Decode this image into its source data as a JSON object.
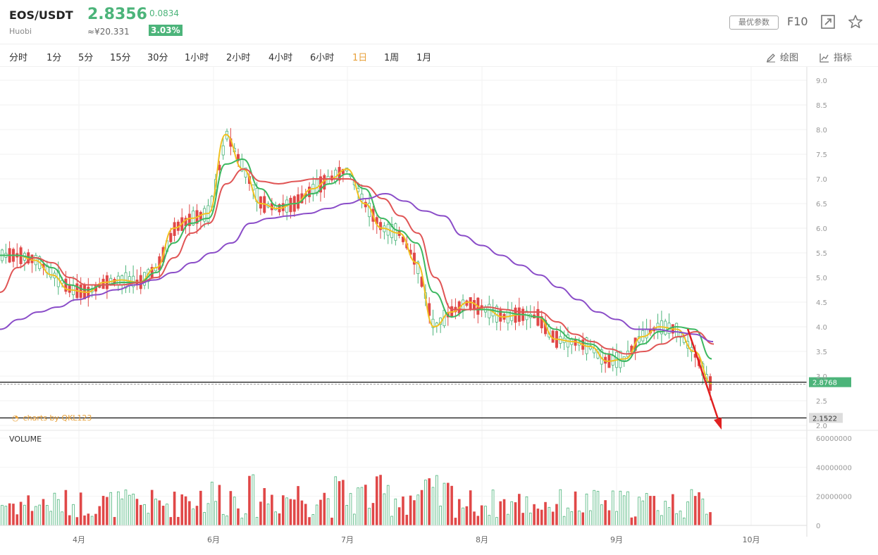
{
  "header": {
    "symbol": "EOS/USDT",
    "exchange": "Huobi",
    "price": "2.8356",
    "cny_price": "≈¥20.331",
    "change": "0.0834",
    "change_pct": "3.03%",
    "params_label": "最优参数",
    "f10_label": "F10",
    "up_color": "#4cb47a",
    "down_color": "#e04848"
  },
  "toolbar": {
    "timeframes": [
      "分时",
      "1分",
      "5分",
      "15分",
      "30分",
      "1小时",
      "2小时",
      "4小时",
      "6小时",
      "1日",
      "1周",
      "1月"
    ],
    "active": "1日",
    "draw_label": "绘图",
    "indicator_label": "指标"
  },
  "watermark": "charts by QKL123",
  "volume_label": "VOLUME",
  "chart_data": [
    {
      "type": "candlestick",
      "x_labels": [
        "4月",
        "6月",
        "7月",
        "8月",
        "9月",
        "10月"
      ],
      "y_ticks": [
        2.0,
        2.5,
        3.0,
        3.5,
        4.0,
        4.5,
        5.0,
        5.5,
        6.0,
        6.5,
        7.0,
        7.5,
        8.0,
        8.5,
        9.0
      ],
      "ylim": [
        2.0,
        9.0
      ],
      "price_markers": [
        {
          "label": "2.8768",
          "value": 2.8768,
          "color": "#4cb47a"
        },
        {
          "label": "2.1522",
          "value": 2.1522,
          "color": "#dddddd"
        }
      ],
      "ma_series": [
        {
          "color": "#f0c020",
          "values": [
            5.45,
            5.45,
            5.35,
            5.05,
            4.75,
            4.7,
            4.9,
            4.95,
            4.9,
            5.2,
            6.0,
            6.2,
            6.3,
            7.9,
            7.2,
            6.5,
            6.4,
            6.5,
            6.8,
            7.0,
            7.2,
            6.5,
            6.0,
            5.9,
            5.3,
            4.0,
            4.3,
            4.5,
            4.35,
            4.2,
            4.25,
            4.2,
            3.75,
            3.7,
            3.6,
            3.3,
            3.35,
            3.8,
            4.0,
            3.95,
            3.5,
            2.85
          ]
        },
        {
          "color": "#3cb860",
          "values": [
            5.45,
            5.45,
            5.4,
            5.2,
            4.85,
            4.75,
            4.85,
            4.9,
            4.9,
            5.1,
            5.7,
            6.1,
            6.2,
            7.3,
            7.4,
            6.8,
            6.45,
            6.5,
            6.7,
            6.9,
            7.1,
            6.8,
            6.2,
            5.95,
            5.7,
            4.7,
            4.2,
            4.35,
            4.35,
            4.3,
            4.25,
            4.2,
            3.95,
            3.75,
            3.65,
            3.45,
            3.3,
            3.65,
            3.9,
            4.0,
            3.95,
            3.35
          ]
        },
        {
          "color": "#e05555",
          "values": [
            4.7,
            5.2,
            5.4,
            5.3,
            5.0,
            4.85,
            4.85,
            4.85,
            4.9,
            5.0,
            5.4,
            5.9,
            6.1,
            6.9,
            7.2,
            6.95,
            6.9,
            6.95,
            7.0,
            7.0,
            7.0,
            6.85,
            6.6,
            6.25,
            5.9,
            5.0,
            4.35,
            4.35,
            4.4,
            4.35,
            4.3,
            4.3,
            4.1,
            3.85,
            3.7,
            3.55,
            3.45,
            3.5,
            3.65,
            3.8,
            3.9,
            3.65
          ]
        },
        {
          "color": "#8a4cc8",
          "values": [
            3.95,
            4.15,
            4.3,
            4.4,
            4.55,
            4.65,
            4.75,
            4.85,
            4.95,
            5.1,
            5.3,
            5.5,
            5.7,
            6.1,
            6.2,
            6.25,
            6.3,
            6.4,
            6.5,
            6.6,
            6.7,
            6.55,
            6.35,
            6.25,
            5.85,
            5.65,
            5.45,
            5.25,
            5.05,
            4.8,
            4.55,
            4.3,
            4.15,
            3.95,
            3.95,
            3.9,
            3.85,
            3.7
          ]
        }
      ]
    },
    {
      "type": "bar",
      "name": "VOLUME",
      "y_ticks": [
        0,
        20000000,
        40000000,
        60000000
      ],
      "y_tick_labels": [
        "0",
        "20000000",
        "40000000",
        "60000000"
      ],
      "ylim": [
        0,
        60000000
      ]
    }
  ]
}
